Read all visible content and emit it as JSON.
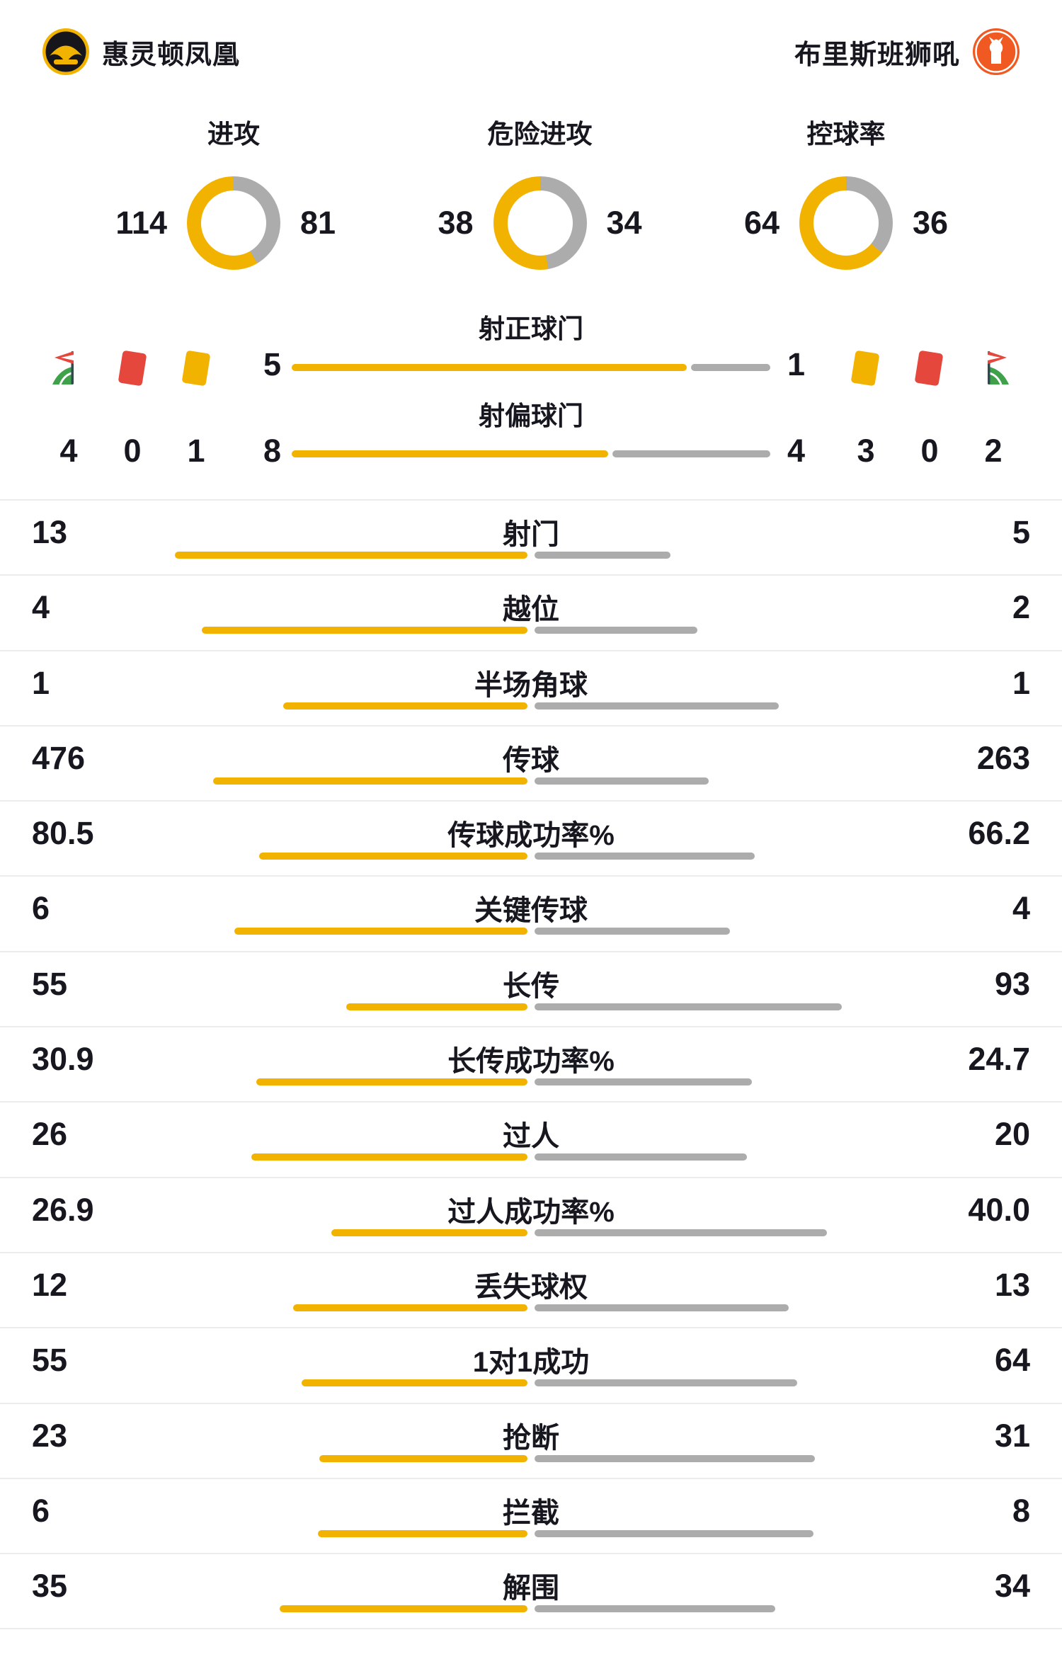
{
  "colors": {
    "home": "#F2B300",
    "away": "#ACACAC",
    "red": "#E5473C",
    "green": "#3FA14A",
    "text": "#17171F",
    "divider": "#ECECEC"
  },
  "header": {
    "home": {
      "name": "惠灵顿凤凰"
    },
    "away": {
      "name": "布里斯班狮吼"
    }
  },
  "chart_data": {
    "type": "match-stats-comparison",
    "teams": {
      "home": "惠灵顿凤凰",
      "away": "布里斯班狮吼"
    },
    "donuts": [
      {
        "label": "进攻",
        "home": "114",
        "away": "81"
      },
      {
        "label": "危险进攻",
        "home": "38",
        "away": "34"
      },
      {
        "label": "控球率",
        "home": "64",
        "away": "36"
      }
    ],
    "shot_bars": [
      {
        "label": "射正球门",
        "home": "5",
        "away": "1"
      },
      {
        "label": "射偏球门",
        "home": "8",
        "away": "4"
      }
    ],
    "discipline": {
      "home": [
        {
          "icon": "corner-flag-icon",
          "count": "4"
        },
        {
          "icon": "red-card-icon",
          "count": "0"
        },
        {
          "icon": "yellow-card-icon",
          "count": "1"
        }
      ],
      "away": [
        {
          "icon": "yellow-card-icon",
          "count": "3"
        },
        {
          "icon": "red-card-icon",
          "count": "0"
        },
        {
          "icon": "corner-flag-icon",
          "count": "2"
        }
      ]
    },
    "stats": [
      {
        "label": "射门",
        "home": "13",
        "away": "5"
      },
      {
        "label": "越位",
        "home": "4",
        "away": "2"
      },
      {
        "label": "半场角球",
        "home": "1",
        "away": "1"
      },
      {
        "label": "传球",
        "home": "476",
        "away": "263"
      },
      {
        "label": "传球成功率%",
        "home": "80.5",
        "away": "66.2"
      },
      {
        "label": "关键传球",
        "home": "6",
        "away": "4"
      },
      {
        "label": "长传",
        "home": "55",
        "away": "93"
      },
      {
        "label": "长传成功率%",
        "home": "30.9",
        "away": "24.7"
      },
      {
        "label": "过人",
        "home": "26",
        "away": "20"
      },
      {
        "label": "过人成功率%",
        "home": "26.9",
        "away": "40.0"
      },
      {
        "label": "丢失球权",
        "home": "12",
        "away": "13"
      },
      {
        "label": "1对1成功",
        "home": "55",
        "away": "64"
      },
      {
        "label": "抢断",
        "home": "23",
        "away": "31"
      },
      {
        "label": "拦截",
        "home": "6",
        "away": "8"
      },
      {
        "label": "解围",
        "home": "35",
        "away": "34"
      }
    ]
  }
}
